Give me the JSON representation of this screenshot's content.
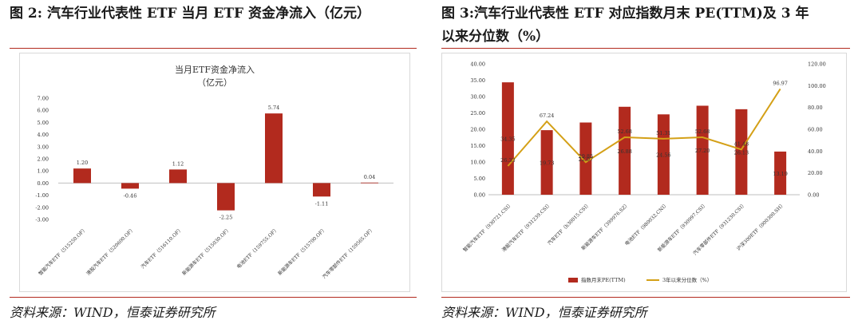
{
  "left": {
    "figure_title": "图 2: 汽车行业代表性 ETF 当月 ETF 资金净流入（亿元）",
    "source": "资料来源：WIND，恒泰证券研究所"
  },
  "right": {
    "figure_title_line1": "图 3:汽车行业代表性 ETF 对应指数月末 PE(TTM)及 3 年",
    "figure_title_line2": "以来分位数（%）",
    "source": "资料来源：WIND，恒泰证券研究所"
  },
  "colors": {
    "bar": "#b22a1e",
    "line": "#d4a017",
    "rule": "#b22a1e"
  },
  "chart_data": [
    {
      "type": "bar",
      "title": "当月ETF资金净流入",
      "subtitle": "（亿元）",
      "categories": [
        "智能汽车ETF（515250.OF）",
        "港股汽车ETF（520600.OF）",
        "汽车ETF（516110.OF）",
        "新能源车ETF（515030.OF）",
        "电池ETF（159755.OF）",
        "新能源车ETF（515700.OF）",
        "汽车零部件ETF（159565.OF）"
      ],
      "values": [
        1.2,
        -0.46,
        1.12,
        -2.25,
        5.74,
        -1.11,
        0.04
      ],
      "value_labels": [
        "1.20",
        "-0.46",
        "1.12",
        "-2.25",
        "5.74",
        "-1.11",
        "0.04"
      ],
      "ylim": [
        -3,
        7
      ],
      "yticks": [
        "-3.00",
        "-2.00",
        "-1.00",
        "0.00",
        "1.00",
        "2.00",
        "3.00",
        "4.00",
        "5.00",
        "6.00",
        "7.00"
      ],
      "grid": false
    },
    {
      "type": "bar+line",
      "categories": [
        "智能汽车ETF（930721.CSI）",
        "港股汽车ETF（931239.CSI）",
        "汽车ETF（h30015.CSI）",
        "新能源车ETF（399976.SZ）",
        "电池ETF（980032.CNI）",
        "新能源车ETF（930997.CSI）",
        "汽车零部件ETF（931230.CSI）",
        "沪深300ETF（000300.SH）"
      ],
      "series": [
        {
          "name": "指数月末PE(TTM)",
          "type": "bar",
          "axis": "left",
          "values": [
            34.35,
            19.73,
            22.07,
            26.88,
            24.56,
            27.2,
            26.13,
            13.19
          ],
          "labels": [
            "34.35",
            "19.73",
            "22.07",
            "26.88",
            "24.56",
            "27.20",
            "26.13",
            "13.19"
          ]
        },
        {
          "name": "3年以来分位数（%）",
          "type": "line",
          "axis": "right",
          "values": [
            26.33,
            67.24,
            29.85,
            52.68,
            51.31,
            52.68,
            41.48,
            96.97
          ],
          "labels": [
            "26.33",
            "67.24",
            "29.85",
            "52.68",
            "51.31",
            "52.68",
            "41.48",
            "96.97"
          ]
        }
      ],
      "ylim_left": [
        0,
        40
      ],
      "yticks_left": [
        "0.00",
        "5.00",
        "10.00",
        "15.00",
        "20.00",
        "25.00",
        "30.00",
        "35.00",
        "40.00"
      ],
      "ylim_right": [
        0,
        120
      ],
      "yticks_right": [
        "0.00",
        "20.00",
        "40.00",
        "60.00",
        "80.00",
        "100.00",
        "120.00"
      ],
      "legend": "bottom",
      "grid": false
    }
  ]
}
